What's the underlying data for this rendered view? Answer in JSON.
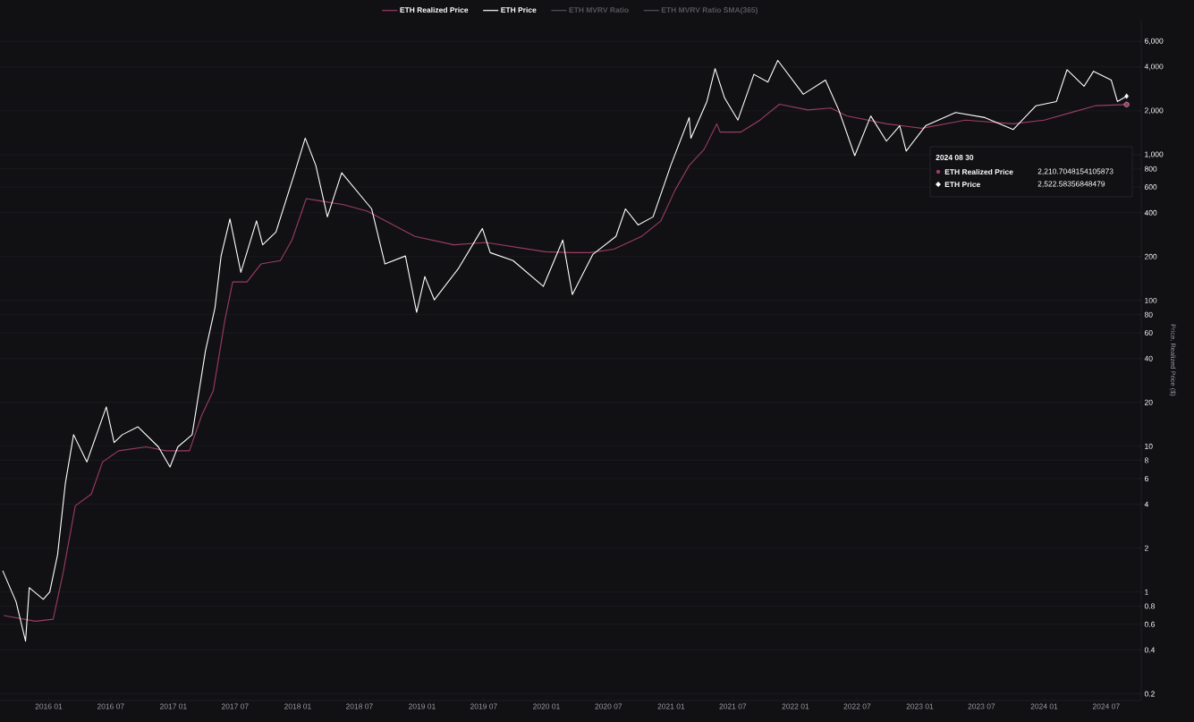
{
  "chart_data": {
    "type": "line",
    "ylabel": "Price, Realized Price ($)",
    "annotations": [
      "ETH MVRV Ratio",
      "ETH MVRV Ratio SMA(365)",
      "2024 08 30",
      "2,210.7048154105873",
      "2,522.58356848479"
    ],
    "xlim": [
      "2015-08-11",
      "2024-10-12"
    ],
    "xticks": [
      {
        "value": "2016-01",
        "label": "2016 01"
      },
      {
        "value": "2016-07",
        "label": "2016 07"
      },
      {
        "value": "2017-01",
        "label": "2017 01"
      },
      {
        "value": "2017-07",
        "label": "2017 07"
      },
      {
        "value": "2018-01",
        "label": "2018 01"
      },
      {
        "value": "2018-07",
        "label": "2018 07"
      },
      {
        "value": "2019-01",
        "label": "2019 01"
      },
      {
        "value": "2019-07",
        "label": "2019 07"
      },
      {
        "value": "2020-01",
        "label": "2020 01"
      },
      {
        "value": "2020-07",
        "label": "2020 07"
      },
      {
        "value": "2021-01",
        "label": "2021 01"
      },
      {
        "value": "2021-07",
        "label": "2021 07"
      },
      {
        "value": "2022-01",
        "label": "2022 01"
      },
      {
        "value": "2022-07",
        "label": "2022 07"
      },
      {
        "value": "2023-01",
        "label": "2023 01"
      },
      {
        "value": "2023-07",
        "label": "2023 07"
      },
      {
        "value": "2024-01",
        "label": "2024 01"
      },
      {
        "value": "2024-07",
        "label": "2024 07"
      }
    ],
    "ylim": [
      0.18,
      8450
    ],
    "yticks": [
      0.2,
      0.4,
      0.6,
      0.8,
      1,
      2,
      4,
      6,
      8,
      10,
      20,
      40,
      60,
      80,
      100,
      200,
      400,
      600,
      800,
      {
        "value": 1000,
        "label": "1,000"
      },
      {
        "value": 2000,
        "label": "2,000"
      },
      {
        "value": 4000,
        "label": "4,000"
      },
      {
        "value": 6000,
        "label": "6,000"
      }
    ],
    "log": "y",
    "grid": "y",
    "legend": "top",
    "line_style": "solid",
    "marker": "none",
    "series": [
      {
        "name": "ETH Realized Price",
        "color": "#9c3d62",
        "x": [
          "2015-08-22",
          "2015-11-23",
          "2016-01-14",
          "2016-02-12",
          "2016-03-19",
          "2016-05-05",
          "2016-06-07",
          "2016-07-24",
          "2016-10-13",
          "2016-12-11",
          "2017-02-17",
          "2017-03-25",
          "2017-04-28",
          "2017-06-01",
          "2017-06-24",
          "2017-08-05",
          "2017-09-15",
          "2017-11-11",
          "2017-12-15",
          "2018-01-26",
          "2018-03-13",
          "2018-05-15",
          "2018-07-24",
          "2018-12-11",
          "2019-04-04",
          "2019-07-07",
          "2019-12-28",
          "2020-03-17",
          "2020-05-08",
          "2020-07-17",
          "2020-10-06",
          "2020-12-02",
          "2021-01-13",
          "2021-02-23",
          "2021-04-08",
          "2021-05-15",
          "2021-05-25",
          "2021-07-24",
          "2021-09-19",
          "2021-11-15",
          "2022-02-06",
          "2022-04-15",
          "2022-05-31",
          "2022-09-25",
          "2023-01-07",
          "2023-05-15",
          "2023-10-02",
          "2024-01-01",
          "2024-03-24",
          "2024-05-30",
          "2024-08-30"
        ],
        "values": [
          0.69,
          0.63,
          0.65,
          1.34,
          3.9,
          4.7,
          7.8,
          9.3,
          9.9,
          9.3,
          9.3,
          16.3,
          24,
          73,
          134,
          134,
          178,
          188,
          260,
          500,
          480,
          455,
          410,
          275,
          241,
          250,
          216,
          213,
          213,
          225,
          275,
          352,
          575,
          845,
          1090,
          1630,
          1430,
          1430,
          1730,
          2220,
          2030,
          2090,
          1850,
          1630,
          1520,
          1730,
          1630,
          1730,
          1960,
          2170,
          2210.7048154105873
        ]
      },
      {
        "name": "ETH Price",
        "color": "#ffffff",
        "x": [
          "2015-08-19",
          "2015-09-27",
          "2015-10-25",
          "2015-11-05",
          "2015-12-16",
          "2016-01-04",
          "2016-01-27",
          "2016-02-19",
          "2016-03-14",
          "2016-04-22",
          "2016-06-18",
          "2016-07-11",
          "2016-08-04",
          "2016-09-19",
          "2016-11-18",
          "2016-12-22",
          "2017-01-14",
          "2017-02-25",
          "2017-03-12",
          "2017-04-05",
          "2017-05-03",
          "2017-05-21",
          "2017-06-16",
          "2017-07-18",
          "2017-09-02",
          "2017-09-20",
          "2017-10-29",
          "2017-12-23",
          "2018-01-23",
          "2018-02-23",
          "2018-03-29",
          "2018-05-10",
          "2018-08-06",
          "2018-09-14",
          "2018-11-13",
          "2018-12-16",
          "2019-01-09",
          "2019-02-06",
          "2019-04-17",
          "2019-06-27",
          "2019-07-20",
          "2019-09-25",
          "2019-12-23",
          "2020-02-18",
          "2020-03-17",
          "2020-05-16",
          "2020-07-23",
          "2020-08-20",
          "2020-09-26",
          "2020-11-09",
          "2020-12-31",
          "2021-02-23",
          "2021-02-28",
          "2021-04-16",
          "2021-05-10",
          "2021-06-07",
          "2021-07-16",
          "2021-09-01",
          "2021-10-12",
          "2021-11-10",
          "2022-01-24",
          "2022-03-30",
          "2022-05-08",
          "2022-06-24",
          "2022-08-10",
          "2022-09-25",
          "2022-11-03",
          "2022-11-22",
          "2023-01-18",
          "2023-04-16",
          "2023-07-11",
          "2023-10-02",
          "2023-12-08",
          "2024-02-06",
          "2024-03-08",
          "2024-04-27",
          "2024-05-25",
          "2024-07-16",
          "2024-08-03",
          "2024-08-30"
        ],
        "values": [
          1.4,
          0.86,
          0.46,
          1.07,
          0.89,
          1.0,
          1.8,
          5.6,
          12,
          7.8,
          18.6,
          10.6,
          12,
          13.6,
          9.9,
          7.2,
          9.9,
          12,
          19.9,
          45,
          89,
          202,
          363,
          156,
          352,
          241,
          295,
          753,
          1300,
          845,
          375,
          753,
          425,
          178,
          202,
          83,
          146,
          101,
          165,
          312,
          213,
          188,
          125,
          260,
          110,
          207,
          275,
          425,
          330,
          375,
          845,
          1800,
          1300,
          2320,
          3900,
          2450,
          1730,
          3560,
          3150,
          4440,
          2600,
          3250,
          2030,
          985,
          1845,
          1240,
          1580,
          1060,
          1580,
          1950,
          1800,
          1490,
          2170,
          2320,
          3830,
          2950,
          3740,
          3250,
          2320,
          2522.58356848479
        ]
      }
    ]
  }
}
